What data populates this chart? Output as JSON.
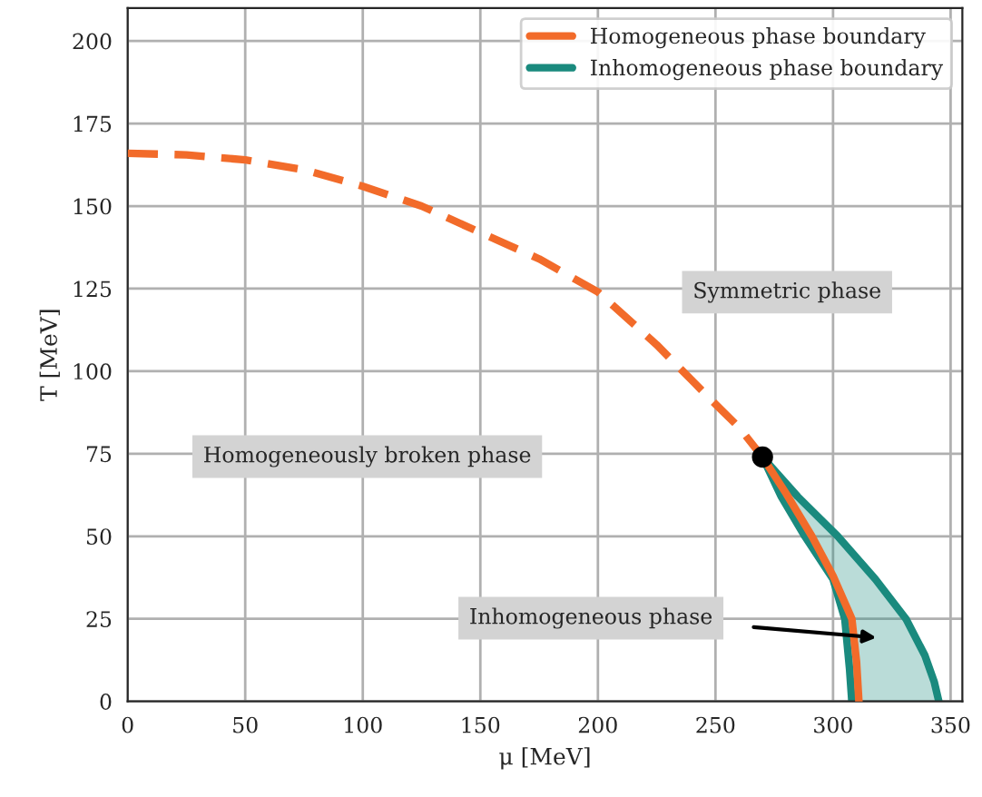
{
  "chart_data": {
    "type": "line",
    "xlabel": "μ [MeV]",
    "ylabel": "T [MeV]",
    "xlim": [
      0,
      355
    ],
    "ylim": [
      0,
      210
    ],
    "xticks": [
      0,
      50,
      100,
      150,
      200,
      250,
      300,
      350
    ],
    "yticks": [
      0,
      25,
      50,
      75,
      100,
      125,
      150,
      175,
      200
    ],
    "grid": true,
    "legend": "top right",
    "series": [
      {
        "line_style": "dashed",
        "color": "#f26b2a",
        "x": [
          0,
          25,
          50,
          75,
          100,
          125,
          150,
          175,
          200,
          225,
          250,
          260,
          270
        ],
        "values": [
          166,
          165.5,
          164,
          161,
          156,
          150,
          142,
          134,
          124,
          108,
          90,
          83,
          74
        ]
      },
      {
        "name": "Homogeneous phase boundary",
        "color": "#f26b2a",
        "x": [
          270,
          280,
          291,
          300,
          308,
          310,
          311
        ],
        "values": [
          74,
          63,
          50,
          38,
          25,
          12,
          0
        ]
      },
      {
        "type": "area",
        "name": "Inhomogeneous phase boundary",
        "color": "#1a8a7e",
        "x": [
          308,
          307,
          305,
          300,
          288,
          278,
          270,
          285,
          302,
          318,
          331,
          339,
          343,
          345
        ],
        "values": [
          0,
          10,
          25,
          37,
          50,
          62,
          74,
          62,
          50,
          37,
          25,
          14,
          6,
          0
        ]
      },
      {
        "type": "scatter",
        "color": "#000000",
        "x": [
          270
        ],
        "values": [
          74
        ]
      }
    ],
    "annotations": [
      "Symmetric phase",
      "Homogeneously broken phase",
      "Inhomogeneous phase"
    ]
  }
}
